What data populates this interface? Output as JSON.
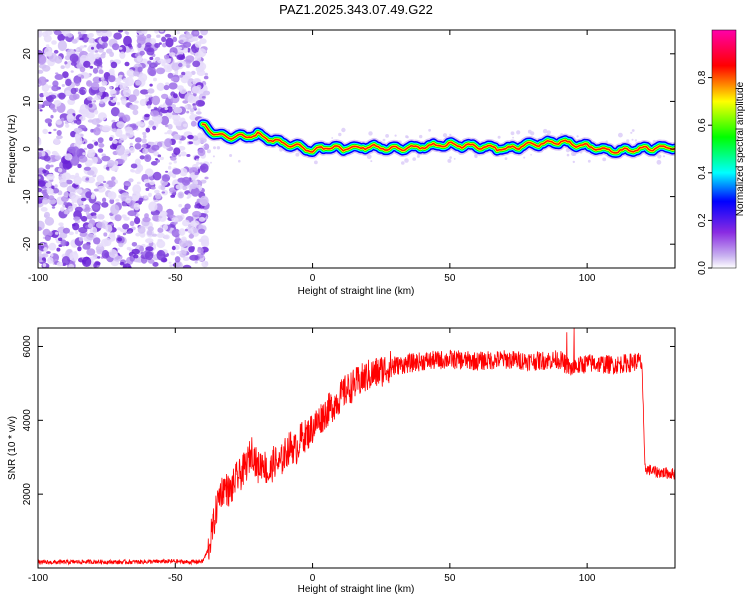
{
  "figure": {
    "title": "PAZ1.2025.343.07.49.G22"
  },
  "chart_data": [
    {
      "type": "heatmap",
      "name": "spectrogram",
      "title": "PAZ1.2025.343.07.49.G22",
      "xlabel": "Height of straight line (km)",
      "ylabel": "Frequency (Hz)",
      "xlim": [
        -100,
        132
      ],
      "ylim": [
        -25,
        25
      ],
      "xticks": [
        "-100",
        "-50",
        "0",
        "50",
        "100"
      ],
      "xtick_values": [
        -100,
        -50,
        0,
        50,
        100
      ],
      "yticks": [
        "-20",
        "-10",
        "0",
        "10",
        "20"
      ],
      "ytick_values": [
        -20,
        -10,
        0,
        10,
        20
      ],
      "noise_region_x": [
        -100,
        -40
      ],
      "ridge": {
        "description": "strong narrow tone tracking near 0 Hz",
        "x": [
          -40,
          -35,
          -30,
          -25,
          -20,
          -15,
          -10,
          -5,
          0,
          5,
          10,
          20,
          30,
          40,
          50,
          60,
          70,
          80,
          90,
          100,
          105,
          110,
          120,
          132
        ],
        "freq_hz": [
          5,
          3,
          2.5,
          2.5,
          3,
          2,
          1,
          0.5,
          -0.5,
          0.5,
          0,
          0.5,
          0,
          0.5,
          1,
          0.5,
          0,
          1,
          1.5,
          0.5,
          0,
          -0.5,
          0,
          0.5
        ]
      },
      "colorbar": {
        "label": "Normalized spectral amplitude",
        "range": [
          0,
          1
        ],
        "ticks": [
          "0.0",
          "0.2",
          "0.4",
          "0.6",
          "0.8"
        ],
        "tick_values": [
          0,
          0.2,
          0.4,
          0.6,
          0.8
        ],
        "colors": [
          "#ffffff",
          "#8a2be2",
          "#0000ff",
          "#00ffff",
          "#00ff00",
          "#ffff00",
          "#ff0000",
          "#ff00aa"
        ]
      }
    },
    {
      "type": "line",
      "name": "snr",
      "xlabel": "Height of straight line (km)",
      "ylabel": "SNR (10 * v/v)",
      "xlim": [
        -100,
        132
      ],
      "ylim": [
        0,
        6500
      ],
      "xticks": [
        "-100",
        "-50",
        "0",
        "50",
        "100"
      ],
      "xtick_values": [
        -100,
        -50,
        0,
        50,
        100
      ],
      "yticks": [
        "2000",
        "4000",
        "6000"
      ],
      "ytick_values": [
        2000,
        4000,
        6000
      ],
      "color": "#ff0000",
      "series": [
        {
          "name": "SNR",
          "x": [
            -100,
            -90,
            -80,
            -70,
            -60,
            -50,
            -45,
            -40,
            -38,
            -36,
            -34,
            -32,
            -30,
            -28,
            -26,
            -24,
            -22,
            -20,
            -18,
            -16,
            -14,
            -12,
            -10,
            -8,
            -6,
            -4,
            -2,
            0,
            4,
            8,
            12,
            16,
            20,
            24,
            28,
            32,
            36,
            40,
            50,
            60,
            70,
            80,
            90,
            94,
            100,
            110,
            119,
            120,
            121,
            125,
            132
          ],
          "y": [
            150,
            160,
            170,
            160,
            170,
            180,
            160,
            180,
            500,
            1200,
            2000,
            2200,
            2050,
            2400,
            2550,
            2800,
            3200,
            2700,
            2900,
            2500,
            2900,
            2800,
            3100,
            3300,
            3200,
            3550,
            3600,
            3800,
            4150,
            4450,
            4800,
            5000,
            5200,
            5300,
            5450,
            5500,
            5550,
            5600,
            5650,
            5600,
            5650,
            5600,
            5650,
            5400,
            5550,
            5500,
            5600,
            5500,
            2700,
            2600,
            2550
          ]
        }
      ]
    }
  ]
}
